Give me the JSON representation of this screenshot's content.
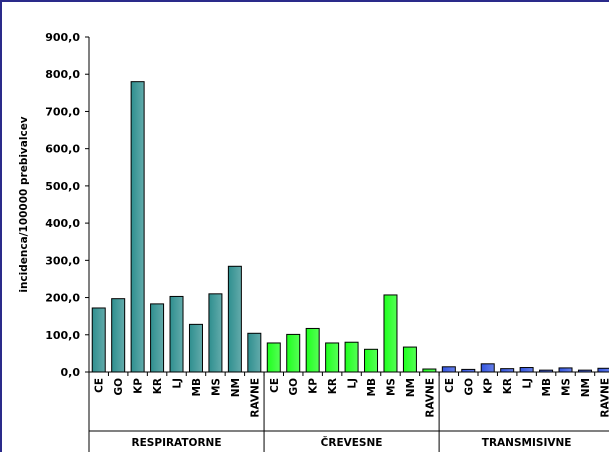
{
  "chart_data": {
    "type": "bar",
    "ylabel": "incidenca/100000 prebivalcev",
    "ylim": [
      0,
      900
    ],
    "yticks": [
      "0,0",
      "100,0",
      "200,0",
      "300,0",
      "400,0",
      "500,0",
      "600,0",
      "700,0",
      "800,0",
      "900,0"
    ],
    "grid": false,
    "groups": [
      {
        "name": "RESPIRATORNE",
        "color": "#2f8f8f",
        "categories": [
          "CE",
          "GO",
          "KP",
          "KR",
          "LJ",
          "MB",
          "MS",
          "NM",
          "RAVNE"
        ],
        "values": [
          172,
          197,
          780,
          183,
          203,
          128,
          210,
          284,
          104
        ]
      },
      {
        "name": "ČREVESNE",
        "color": "#1eff1e",
        "categories": [
          "CE",
          "GO",
          "KP",
          "KR",
          "LJ",
          "MB",
          "MS",
          "NM",
          "RAVNE"
        ],
        "values": [
          78,
          101,
          117,
          78,
          80,
          61,
          207,
          67,
          8
        ]
      },
      {
        "name": "TRANSMISIVNE",
        "color": "#3355e0",
        "categories": [
          "CE",
          "GO",
          "KP",
          "KR",
          "LJ",
          "MB",
          "MS",
          "NM",
          "RAVNE"
        ],
        "values": [
          14,
          7,
          22,
          9,
          12,
          5,
          11,
          5,
          10
        ]
      }
    ]
  }
}
